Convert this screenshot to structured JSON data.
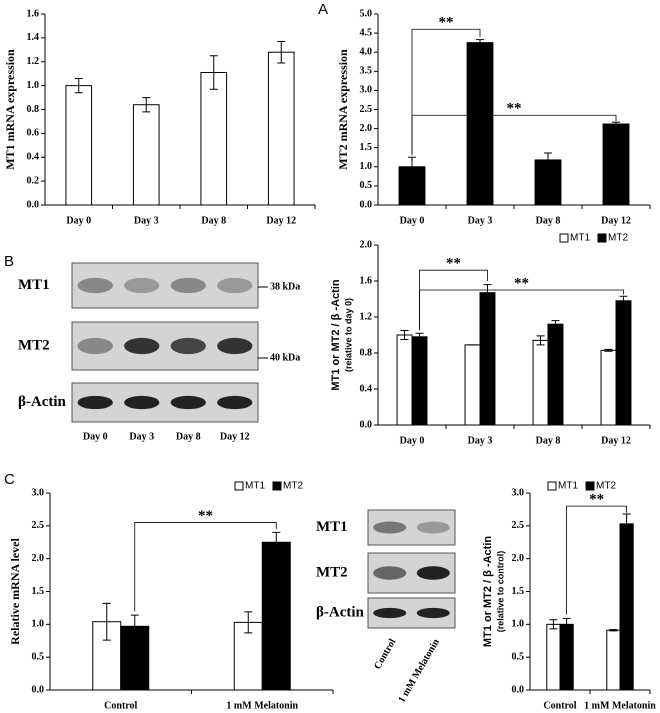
{
  "panels": [
    "A",
    "B",
    "C"
  ],
  "blot_b": {
    "rows": [
      "MT1",
      "MT2",
      "β-Actin"
    ],
    "markers": [
      "38 kDa",
      "40 kDa"
    ],
    "lanes": [
      "Day 0",
      "Day 3",
      "Day 8",
      "Day 12"
    ]
  },
  "blot_c": {
    "rows": [
      "MT1",
      "MT2",
      "β-Actin"
    ],
    "lanes": [
      "Control",
      "1 mM Melatonin"
    ]
  },
  "chart_data": [
    {
      "type": "bar",
      "ylabel": [
        "MT1 mRNA expression"
      ],
      "categories": [
        "Day 0",
        "Day 3",
        "Day 8",
        "Day 12"
      ],
      "values": [
        1.0,
        0.84,
        1.11,
        1.28
      ],
      "errors": [
        0.06,
        0.06,
        0.14,
        0.09
      ],
      "color": "#ffffff",
      "ylim": [
        0,
        1.6
      ],
      "yticks": [
        {
          "value": 0,
          "label": "0.0"
        },
        0.2,
        0.4,
        0.6,
        0.8,
        {
          "value": 1,
          "label": "1.0"
        },
        1.2,
        1.4,
        1.6
      ]
    },
    {
      "type": "bar",
      "ylabel": [
        "MT2 mRNA expression"
      ],
      "categories": [
        "Day 0",
        "Day 3",
        "Day 8",
        "Day 12"
      ],
      "values": [
        1.0,
        4.25,
        1.18,
        2.12
      ],
      "errors": [
        0.25,
        0.08,
        0.18,
        0.05
      ],
      "color": "#000000",
      "ylim": [
        0,
        5
      ],
      "yticks": [
        {
          "value": 0,
          "label": "0.0"
        },
        0.5,
        {
          "value": 1,
          "label": "1.0"
        },
        1.5,
        {
          "value": 2,
          "label": "2.0"
        },
        2.5,
        {
          "value": 3,
          "label": "3.0"
        },
        3.5,
        {
          "value": 4,
          "label": "4.0"
        },
        4.5,
        {
          "value": 5,
          "label": "5.0"
        }
      ],
      "annotations": [
        "**",
        "**"
      ]
    },
    {
      "type": "grouped_bar",
      "ylabel": [
        "MT1 or MT2 / β -Actin",
        "(relative to day 0)"
      ],
      "categories": [
        "Day 0",
        "Day 3",
        "Day 8",
        "Day 12"
      ],
      "series": [
        {
          "name": "MT1",
          "color": "#ffffff",
          "values": [
            1.0,
            0.89,
            0.94,
            0.83
          ],
          "errors": [
            0.05,
            0,
            0.05,
            0.01
          ]
        },
        {
          "name": "MT2",
          "color": "#000000",
          "values": [
            0.98,
            1.47,
            1.12,
            1.38
          ],
          "errors": [
            0.04,
            0.09,
            0.04,
            0.05
          ]
        }
      ],
      "ylim": [
        0,
        2
      ],
      "yticks": [
        {
          "value": 0,
          "label": "0.0"
        },
        0.4,
        0.8,
        1.2,
        1.6,
        {
          "value": 2,
          "label": "2.0"
        }
      ],
      "annotations": [
        "**",
        "**"
      ]
    },
    {
      "type": "grouped_bar",
      "ylabel": [
        "Relative mRNA level"
      ],
      "categories": [
        "Control",
        "1 mM Melatonin"
      ],
      "series": [
        {
          "name": "MT1",
          "color": "#ffffff",
          "values": [
            1.04,
            1.03
          ],
          "errors": [
            0.28,
            0.16
          ]
        },
        {
          "name": "MT2",
          "color": "#000000",
          "values": [
            0.97,
            2.25
          ],
          "errors": [
            0.17,
            0.15
          ]
        }
      ],
      "ylim": [
        0,
        3
      ],
      "yticks": [
        {
          "value": 0,
          "label": "0.0"
        },
        0.5,
        {
          "value": 1,
          "label": "1.0"
        },
        1.5,
        {
          "value": 2,
          "label": "2.0"
        },
        2.5,
        {
          "value": 3,
          "label": "3.0"
        }
      ],
      "annotations": [
        "**"
      ]
    },
    {
      "type": "grouped_bar",
      "ylabel": [
        "MT1 or MT2 / β -Actin",
        "(relative to control)"
      ],
      "categories": [
        "Control",
        "1 mM Melatonin"
      ],
      "series": [
        {
          "name": "MT1",
          "color": "#ffffff",
          "values": [
            1.0,
            0.91
          ],
          "errors": [
            0.07,
            0.01
          ]
        },
        {
          "name": "MT2",
          "color": "#000000",
          "values": [
            1.0,
            2.53
          ],
          "errors": [
            0.09,
            0.15
          ]
        }
      ],
      "ylim": [
        0,
        3
      ],
      "yticks": [
        {
          "value": 0,
          "label": "0.0"
        },
        0.5,
        {
          "value": 1,
          "label": "1.0"
        },
        1.5,
        {
          "value": 2,
          "label": "2.0"
        },
        2.5,
        {
          "value": 3,
          "label": "3.0"
        }
      ],
      "annotations": [
        "**"
      ]
    }
  ]
}
